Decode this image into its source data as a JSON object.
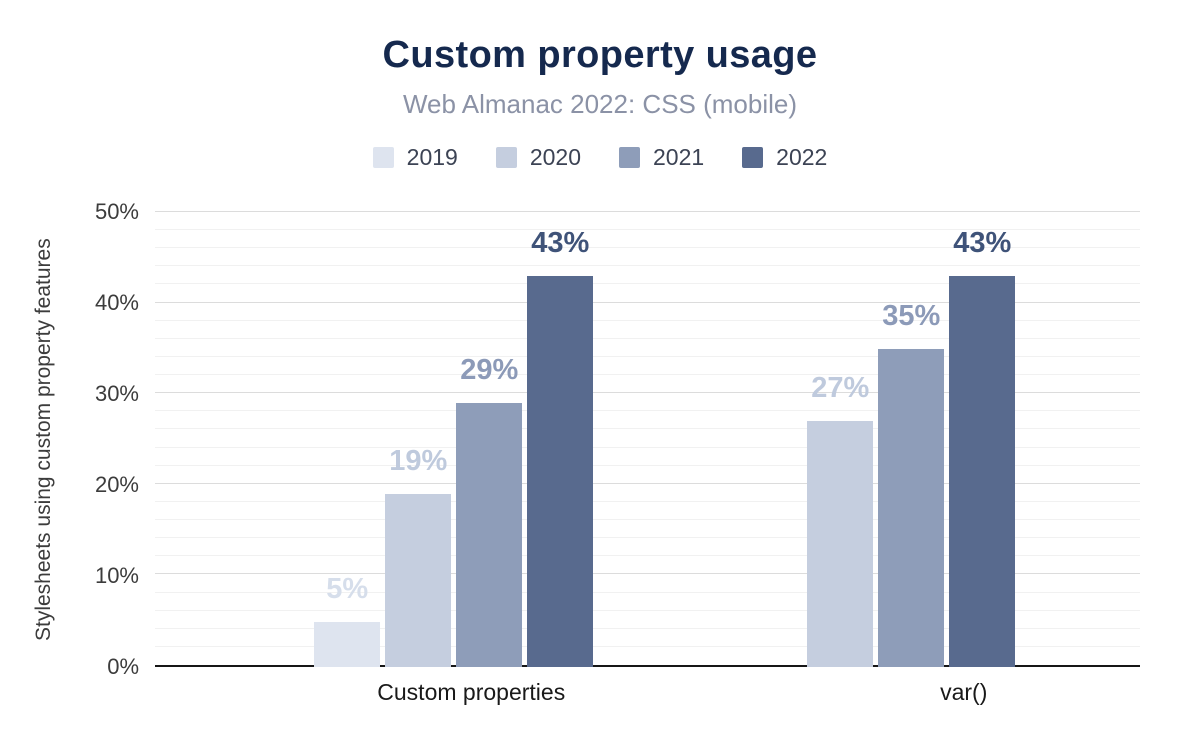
{
  "chart_data": {
    "type": "bar",
    "title": "Custom property usage",
    "subtitle": "Web Almanac 2022: CSS (mobile)",
    "xlabel": "",
    "ylabel": "Stylesheets using custom property features",
    "categories": [
      "Custom properties",
      "var()"
    ],
    "series": [
      {
        "name": "2019",
        "color": "#dee4ef",
        "label_color": "#d6deeb",
        "values": [
          5,
          null
        ],
        "labels": [
          "5%",
          null
        ]
      },
      {
        "name": "2020",
        "color": "#c5cedf",
        "label_color": "#bfcadd",
        "values": [
          19,
          27
        ],
        "labels": [
          "19%",
          "27%"
        ]
      },
      {
        "name": "2021",
        "color": "#8e9db9",
        "label_color": "#8c9ab8",
        "values": [
          29,
          35
        ],
        "labels": [
          "29%",
          "35%"
        ]
      },
      {
        "name": "2022",
        "color": "#586a8e",
        "label_color": "#3f5379",
        "values": [
          43,
          43
        ],
        "labels": [
          "43%",
          "43%"
        ]
      }
    ],
    "ylim": [
      0,
      50
    ],
    "yticks": [
      0,
      10,
      20,
      30,
      40,
      50
    ],
    "ytick_labels": [
      "0%",
      "10%",
      "20%",
      "30%",
      "40%",
      "50%"
    ],
    "gridlines": {
      "major": 10,
      "minor": 2
    },
    "grid": true,
    "legend_position": "top"
  }
}
